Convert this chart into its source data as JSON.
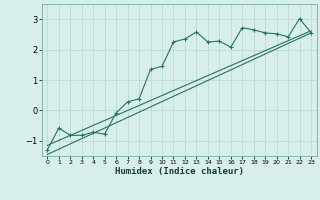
{
  "xlabel": "Humidex (Indice chaleur)",
  "bg_color": "#d7eeea",
  "line_color": "#2a7068",
  "grid_color": "#b8d8d2",
  "xlim": [
    -0.5,
    23.5
  ],
  "ylim": [
    -1.5,
    3.5
  ],
  "xticks": [
    0,
    1,
    2,
    3,
    4,
    5,
    6,
    7,
    8,
    9,
    10,
    11,
    12,
    13,
    14,
    15,
    16,
    17,
    18,
    19,
    20,
    21,
    22,
    23
  ],
  "yticks": [
    -1,
    0,
    1,
    2,
    3
  ],
  "scatter_x": [
    0,
    1,
    2,
    3,
    4,
    5,
    6,
    7,
    8,
    9,
    10,
    11,
    12,
    13,
    14,
    15,
    16,
    17,
    18,
    19,
    20,
    21,
    22,
    23
  ],
  "scatter_y": [
    -1.3,
    -0.58,
    -0.82,
    -0.82,
    -0.72,
    -0.78,
    -0.08,
    0.28,
    0.38,
    1.35,
    1.45,
    2.25,
    2.35,
    2.58,
    2.25,
    2.28,
    2.08,
    2.72,
    2.65,
    2.55,
    2.52,
    2.42,
    3.02,
    2.55
  ],
  "line1_x": [
    0,
    23
  ],
  "line1_y": [
    -1.15,
    2.62
  ],
  "line2_x": [
    0,
    23
  ],
  "line2_y": [
    -1.45,
    2.55
  ]
}
